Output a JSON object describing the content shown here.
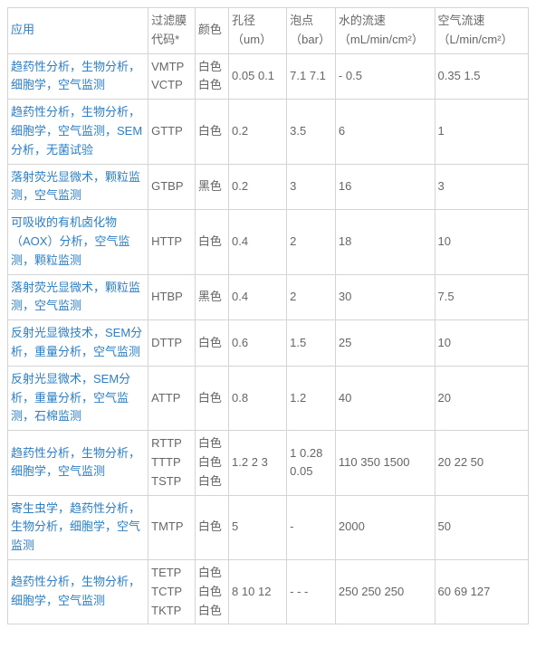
{
  "headers": {
    "application": "应用",
    "filter_code": "过滤膜代码*",
    "color": "颜色",
    "pore_size": "孔径（um）",
    "bubble_point": "泡点（bar）",
    "water_flow": "水的流速（mL/min/cm²）",
    "air_flow": "空气流速（L/min/cm²）"
  },
  "rows": [
    {
      "application": "趋药性分析，生物分析，细胞学，空气监测",
      "filter_code": "VMTP VCTP",
      "color": "白色 白色",
      "pore_size": "0.05 0.1",
      "bubble_point": "7.1 7.1",
      "water_flow": "- 0.5",
      "air_flow": "0.35 1.5"
    },
    {
      "application": "趋药性分析，生物分析，细胞学，空气监测，SEM分析，无菌试验",
      "filter_code": "GTTP",
      "color": "白色",
      "pore_size": "0.2",
      "bubble_point": "3.5",
      "water_flow": "6",
      "air_flow": "1"
    },
    {
      "application": "落射荧光显微术，颗粒监测，空气监测",
      "filter_code": "GTBP",
      "color": "黑色",
      "pore_size": "0.2",
      "bubble_point": "3",
      "water_flow": "16",
      "air_flow": "3"
    },
    {
      "application": "可吸收的有机卤化物（AOX）分析，空气监测，颗粒监测",
      "filter_code": "HTTP",
      "color": "白色",
      "pore_size": "0.4",
      "bubble_point": "2",
      "water_flow": "18",
      "air_flow": "10"
    },
    {
      "application": "落射荧光显微术，颗粒监测，空气监测",
      "filter_code": "HTBP",
      "color": "黑色",
      "pore_size": "0.4",
      "bubble_point": "2",
      "water_flow": "30",
      "air_flow": "7.5"
    },
    {
      "application": "反射光显微技术，SEM分析，重量分析，空气监测",
      "filter_code": "DTTP",
      "color": "白色",
      "pore_size": "0.6",
      "bubble_point": "1.5",
      "water_flow": "25",
      "air_flow": "10"
    },
    {
      "application": "反射光显微术，SEM分析，重量分析，空气监测，石棉监测",
      "filter_code": "ATTP",
      "color": "白色",
      "pore_size": "0.8",
      "bubble_point": "1.2",
      "water_flow": "40",
      "air_flow": "20"
    },
    {
      "application": "趋药性分析，生物分析，细胞学，空气监测",
      "filter_code": "RTTP TTTP TSTP",
      "color": "白色 白色 白色",
      "pore_size": "1.2 2 3",
      "bubble_point": "1 0.28 0.05",
      "water_flow": "110 350 1500",
      "air_flow": "20 22 50"
    },
    {
      "application": "寄生虫学，趋药性分析，生物分析，细胞学，空气监测",
      "filter_code": "TMTP",
      "color": "白色",
      "pore_size": "5",
      "bubble_point": "-",
      "water_flow": "2000",
      "air_flow": "50"
    },
    {
      "application": "趋药性分析，生物分析，细胞学，空气监测",
      "filter_code": "TETP TCTP TKTP",
      "color": "白色 白色 白色",
      "pore_size": "8 10 12",
      "bubble_point": "- - -",
      "water_flow": "250 250 250",
      "air_flow": "60 69 127"
    }
  ],
  "styles": {
    "link_color": "#2a7fc9",
    "text_color": "#666",
    "border_color": "#d4d4d4",
    "font_size": 13,
    "column_widths": {
      "application": 150,
      "filter_code": 50,
      "color": 36,
      "pore_size": 62,
      "bubble_point": 52,
      "water_flow": 106,
      "air_flow": 100
    }
  }
}
